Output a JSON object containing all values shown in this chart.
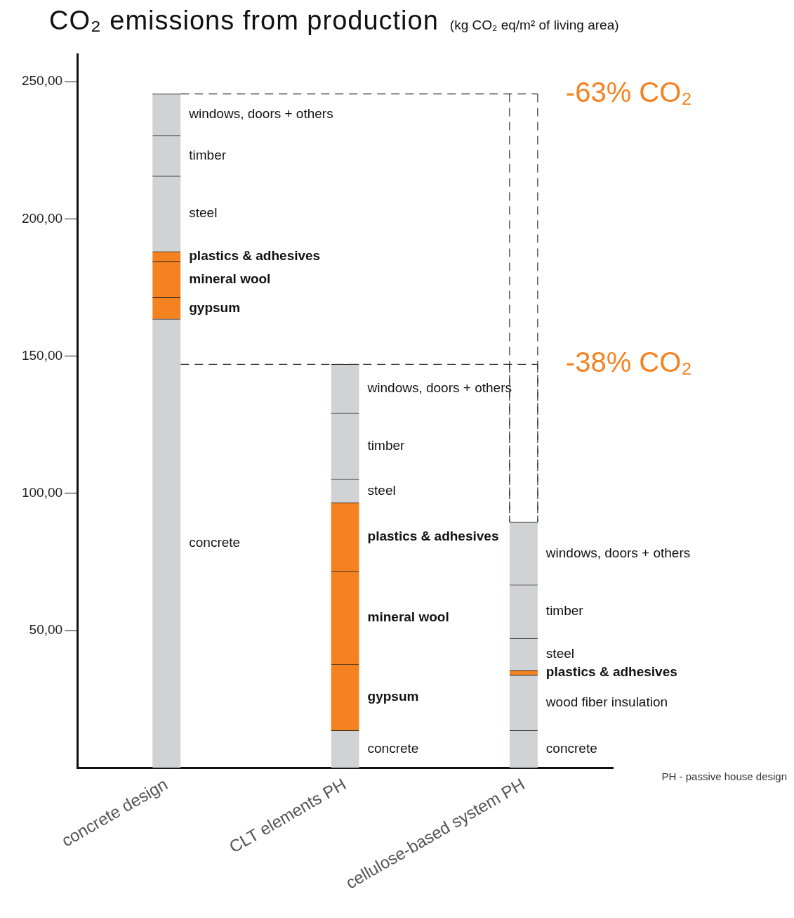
{
  "chart_data": {
    "type": "bar",
    "title": "CO₂ emissions from production",
    "subtitle": "(kg CO₂ eq/m² of living area)",
    "categories": [
      "concrete design",
      "CLT elements PH",
      "cellulose-based system PH"
    ],
    "stacked": true,
    "series": [
      {
        "name": "concrete",
        "color": "#d1d2d4",
        "values": [
          163.5,
          13.6,
          13.6
        ]
      },
      {
        "name": "gypsum",
        "color": "#f58220",
        "values": [
          7.8,
          24.1,
          null
        ]
      },
      {
        "name": "wood fiber insulation",
        "color": "#d1d2d4",
        "values": [
          null,
          null,
          20.2
        ]
      },
      {
        "name": "mineral wool",
        "color": "#f58220",
        "values": [
          13.1,
          33.8,
          null
        ]
      },
      {
        "name": "plastics & adhesives",
        "color": "#f58220",
        "values": [
          3.7,
          25.1,
          1.7
        ]
      },
      {
        "name": "steel",
        "color": "#d1d2d4",
        "values": [
          27.5,
          8.5,
          11.7
        ]
      },
      {
        "name": "timber",
        "color": "#d1d2d4",
        "values": [
          14.8,
          24.1,
          19.5
        ]
      },
      {
        "name": "windows, doors + others",
        "color": "#d1d2d4",
        "values": [
          15.1,
          17.8,
          22.8
        ]
      }
    ],
    "ylim": [
      0,
      260
    ],
    "yticks": [
      {
        "value": 50,
        "label": "50,00"
      },
      {
        "value": 100,
        "label": "100,00"
      },
      {
        "value": 150,
        "label": "150,00"
      },
      {
        "value": 200,
        "label": "200,00"
      },
      {
        "value": 250,
        "label": "250,00"
      }
    ],
    "ref_lines": [
      {
        "axis": "y",
        "value": 245.5,
        "label": "-63% CO₂",
        "color": "#333333",
        "line_style": "dashed"
      },
      {
        "axis": "y",
        "value": 147.0,
        "label": "-38% CO₂",
        "color": "#333333",
        "line_style": "dashed"
      }
    ],
    "annotations": [
      "PH - passive house design"
    ],
    "grid": false,
    "legend": false
  }
}
